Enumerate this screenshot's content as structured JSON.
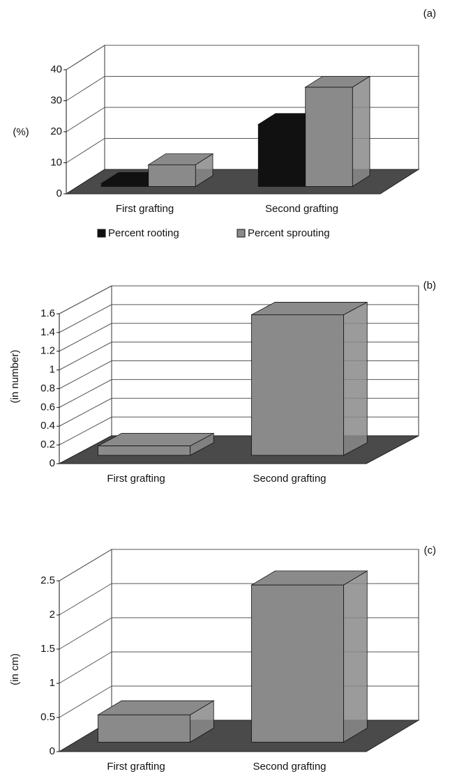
{
  "chart_data": [
    {
      "type": "bar3d",
      "panel_label": "(a)",
      "y_label": "(%)",
      "categories": [
        "First grafting",
        "Second grafting"
      ],
      "series": [
        {
          "name": "Percent rooting",
          "color": "#111111",
          "values": [
            1,
            20
          ]
        },
        {
          "name": "Percent sprouting",
          "color": "#8a8a8a",
          "values": [
            7,
            32
          ]
        }
      ],
      "ylim": [
        0,
        40
      ],
      "yticks": [
        0,
        10,
        20,
        30,
        40
      ],
      "grid": true
    },
    {
      "type": "bar3d",
      "panel_label": "(b)",
      "y_label": "(in number)",
      "categories": [
        "First grafting",
        "Second grafting"
      ],
      "values": [
        0.1,
        1.5
      ],
      "color": "#8a8a8a",
      "ylim": [
        0,
        1.6
      ],
      "yticks": [
        0,
        0.2,
        0.4,
        0.6,
        0.8,
        1,
        1.2,
        1.4,
        1.6
      ],
      "grid": true
    },
    {
      "type": "bar3d",
      "panel_label": "(c)",
      "y_label": "(in cm)",
      "categories": [
        "First grafting",
        "Second grafting"
      ],
      "values": [
        0.4,
        2.3
      ],
      "color": "#8a8a8a",
      "ylim": [
        0,
        2.5
      ],
      "yticks": [
        0,
        0.5,
        1,
        1.5,
        2,
        2.5
      ],
      "grid": true
    }
  ]
}
